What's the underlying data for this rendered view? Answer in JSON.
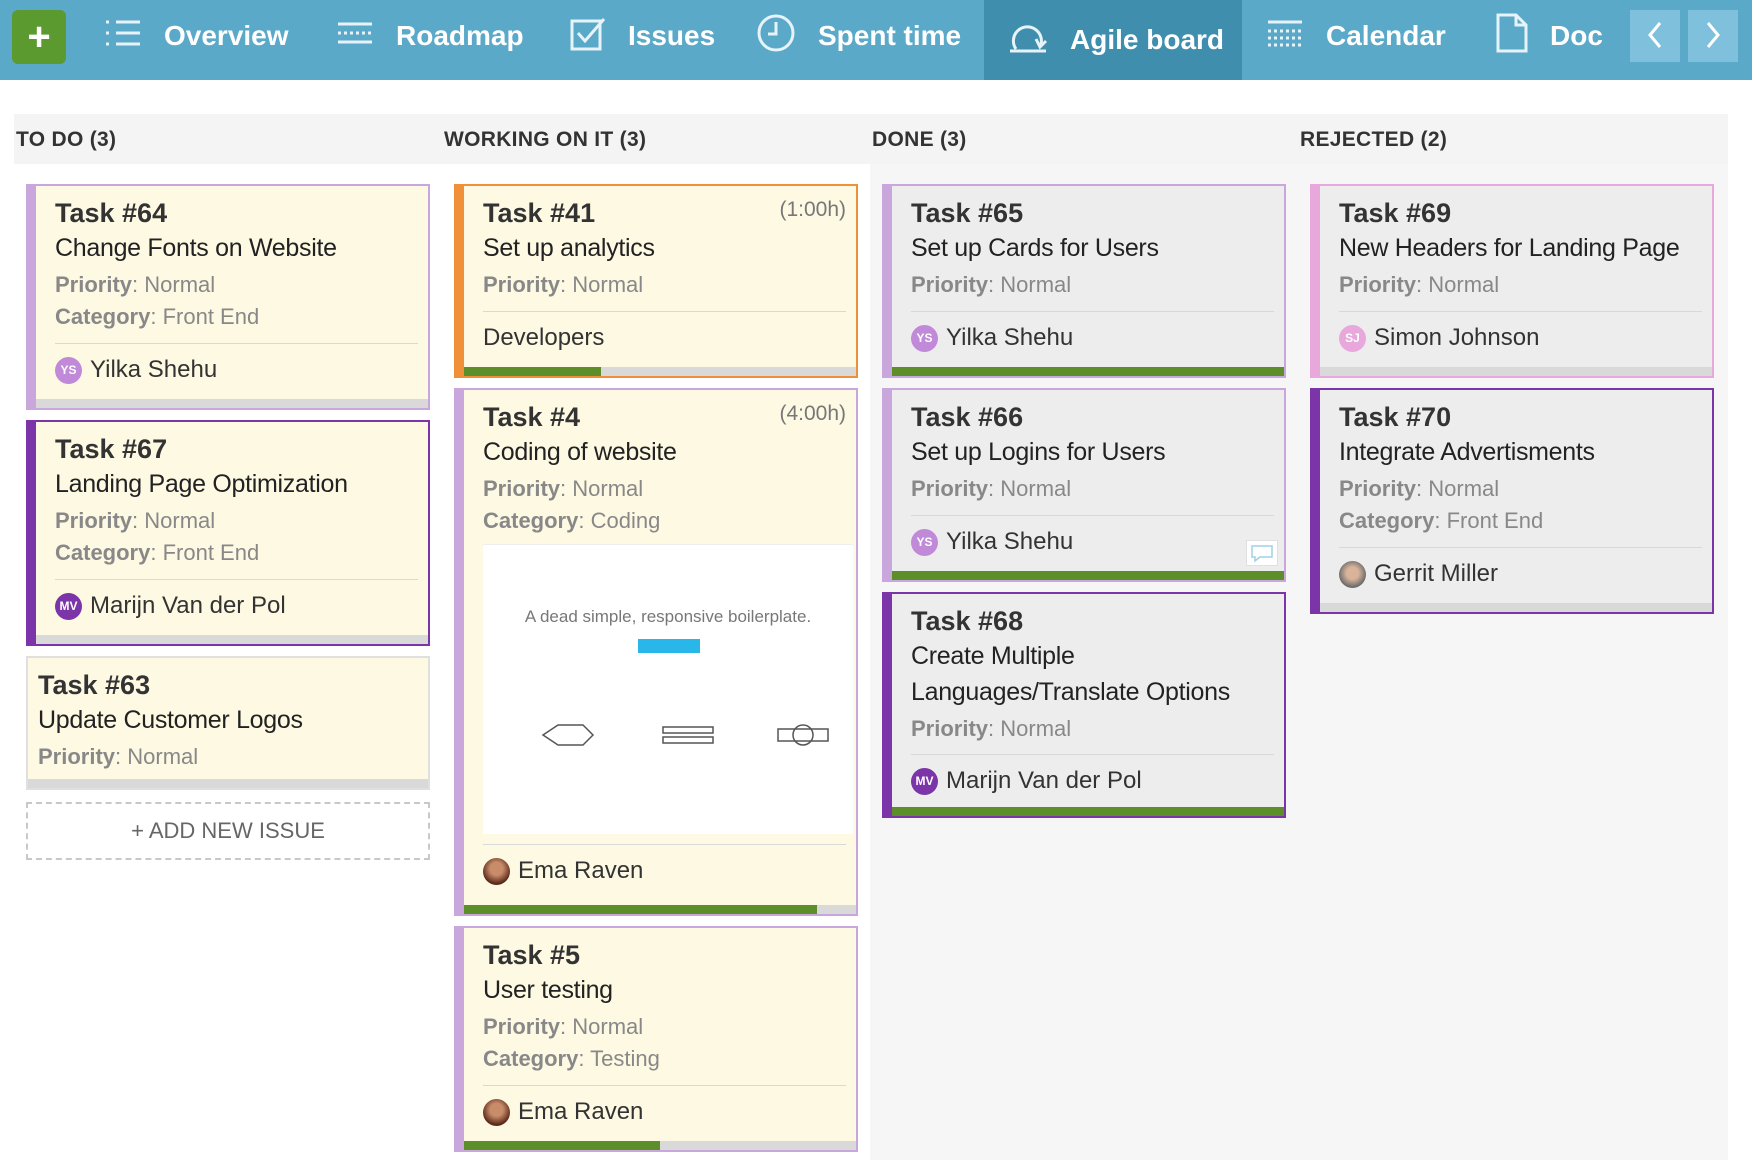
{
  "nav": {
    "add_label": "+",
    "items": [
      {
        "label": "Overview",
        "icon": "list-icon"
      },
      {
        "label": "Roadmap",
        "icon": "roadmap-icon"
      },
      {
        "label": "Issues",
        "icon": "checkbox-icon"
      },
      {
        "label": "Spent time",
        "icon": "clock-icon"
      },
      {
        "label": "Agile board",
        "icon": "agile-icon",
        "active": true
      },
      {
        "label": "Calendar",
        "icon": "calendar-icon"
      },
      {
        "label": "Doc",
        "icon": "document-icon"
      }
    ],
    "prev_label": "‹",
    "next_label": "›"
  },
  "columns": [
    {
      "title": "TO DO (3)"
    },
    {
      "title": "WORKING ON IT (3)"
    },
    {
      "title": "DONE (3)"
    },
    {
      "title": "REJECTED (2)"
    }
  ],
  "labels": {
    "priority": "Priority",
    "category": "Category"
  },
  "cards": {
    "t64": {
      "title": "Task #64",
      "subject": "Change Fonts on Website",
      "priority": ": Normal",
      "category": ": Front End",
      "assignee": "Yilka Shehu",
      "initials": "YS"
    },
    "t67": {
      "title": "Task #67",
      "subject": "Landing Page Optimization",
      "priority": ": Normal",
      "category": ": Front End",
      "assignee": "Marijn Van der Pol",
      "initials": "MV"
    },
    "t63": {
      "title": "Task #63",
      "subject": "Update Customer Logos",
      "priority": ": Normal"
    },
    "t41": {
      "title": "Task #41",
      "time": "(1:00h)",
      "subject": "Set up analytics",
      "priority": ": Normal",
      "assignee": "Developers",
      "progress": 0.35
    },
    "t4": {
      "title": "Task #4",
      "time": "(4:00h)",
      "subject": "Coding of website",
      "priority": ": Normal",
      "category": ": Coding",
      "assignee": "Ema Raven",
      "thumb_text": "A dead simple, responsive boilerplate.",
      "progress": 0.9
    },
    "t5": {
      "title": "Task #5",
      "subject": "User testing",
      "priority": ": Normal",
      "category": ": Testing",
      "assignee": "Ema Raven",
      "progress": 0.5
    },
    "t65": {
      "title": "Task #65",
      "subject": "Set up Cards for Users",
      "priority": ": Normal",
      "assignee": "Yilka Shehu",
      "initials": "YS",
      "progress": 1
    },
    "t66": {
      "title": "Task #66",
      "subject": "Set up Logins for Users",
      "priority": ": Normal",
      "assignee": "Yilka Shehu",
      "initials": "YS",
      "progress": 1
    },
    "t68": {
      "title": "Task #68",
      "subject_line1": "Create Multiple",
      "subject_line2": "Languages/Translate Options",
      "priority": ": Normal",
      "assignee": "Marijn Van der Pol",
      "initials": "MV",
      "progress": 1
    },
    "t69": {
      "title": "Task #69",
      "subject": "New Headers for Landing Page",
      "priority": ": Normal",
      "assignee": "Simon Johnson",
      "initials": "SJ"
    },
    "t70": {
      "title": "Task #70",
      "subject": "Integrate Advertisments",
      "priority": ": Normal",
      "category": ": Front End",
      "assignee": "Gerrit Miller"
    }
  },
  "add_issue_label": "+ ADD NEW ISSUE",
  "colors": {
    "nav_bg": "#5aa9c9",
    "nav_active": "#3f8ead",
    "add_button": "#5b9a2f",
    "progress": "#5c8e2a",
    "light_purple": "#c9a6dc",
    "dark_purple": "#7b35a8",
    "orange": "#f0913a",
    "pink": "#e8a8dc"
  }
}
